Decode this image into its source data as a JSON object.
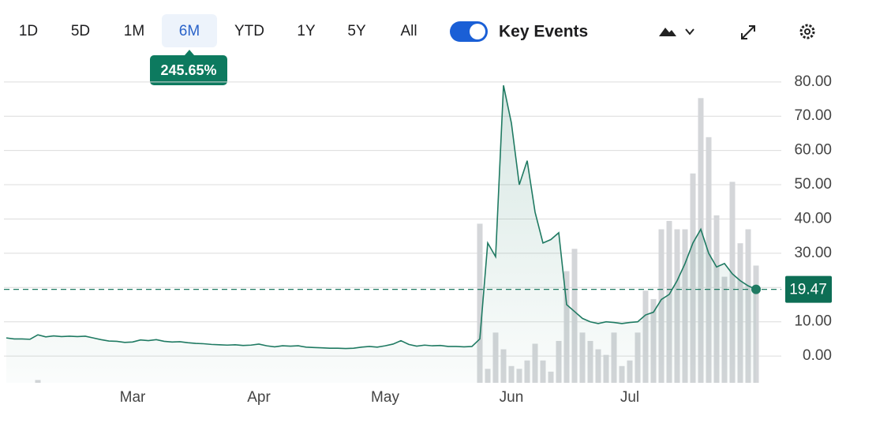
{
  "toolbar": {
    "ranges": [
      "1D",
      "5D",
      "1M",
      "6M",
      "YTD",
      "1Y",
      "5Y",
      "All"
    ],
    "active": "6M",
    "badge": "245.65%",
    "toggle_label": "Key Events",
    "toggle_on": true
  },
  "chart_data": {
    "type": "line",
    "categories": [
      null,
      null,
      null,
      null,
      null,
      null,
      null,
      null,
      null,
      null,
      null,
      null,
      null,
      null,
      null,
      null,
      "Mar",
      null,
      null,
      null,
      null,
      null,
      null,
      null,
      null,
      null,
      null,
      null,
      null,
      null,
      null,
      null,
      "Apr",
      null,
      null,
      null,
      null,
      null,
      null,
      null,
      null,
      null,
      null,
      null,
      null,
      null,
      null,
      null,
      "May",
      null,
      null,
      null,
      null,
      null,
      null,
      null,
      null,
      null,
      null,
      null,
      null,
      null,
      null,
      null,
      "Jun",
      null,
      null,
      null,
      null,
      null,
      null,
      null,
      null,
      null,
      null,
      null,
      null,
      null,
      null,
      "Jul",
      null,
      null,
      null,
      null,
      null,
      null,
      null,
      null,
      null,
      null,
      null,
      null,
      null,
      null,
      null,
      null
    ],
    "series": [
      {
        "color": "#1f7a62",
        "values": [
          5.3,
          5.0,
          5.0,
          4.9,
          6.2,
          5.6,
          5.9,
          5.7,
          5.8,
          5.7,
          5.8,
          5.3,
          4.8,
          4.4,
          4.3,
          4.0,
          4.1,
          4.7,
          4.5,
          4.8,
          4.3,
          4.1,
          4.2,
          3.9,
          3.7,
          3.6,
          3.4,
          3.3,
          3.2,
          3.3,
          3.1,
          3.2,
          3.5,
          3.0,
          2.7,
          3.0,
          2.9,
          3.0,
          2.6,
          2.5,
          2.4,
          2.3,
          2.3,
          2.2,
          2.3,
          2.6,
          2.8,
          2.6,
          3.0,
          3.5,
          4.5,
          3.4,
          2.9,
          3.2,
          3.0,
          3.1,
          2.8,
          2.8,
          2.7,
          2.8,
          5.0,
          33,
          29,
          79,
          68,
          50,
          57,
          42,
          33,
          34,
          36,
          15,
          13,
          11,
          10,
          9.5,
          10,
          9.8,
          9.5,
          9.8,
          10,
          12,
          12.8,
          16.5,
          18,
          22,
          27,
          33,
          37,
          30,
          26,
          27,
          24,
          22,
          20.5,
          19.47
        ]
      }
    ],
    "volume": {
      "color": "#d4d6d9",
      "values": [
        0,
        0,
        0,
        0,
        1,
        0,
        0,
        0,
        0,
        0,
        0,
        0,
        0,
        0,
        0,
        0,
        0,
        0,
        0,
        0,
        0,
        0,
        0,
        0,
        0,
        0,
        0,
        0,
        0,
        0,
        0,
        0,
        0,
        0,
        0,
        0,
        0,
        0,
        0,
        0,
        0,
        0,
        0,
        0,
        0,
        0,
        0,
        0,
        0,
        0,
        0,
        0,
        0,
        0,
        0,
        0,
        0,
        0,
        0,
        0,
        57,
        5,
        18,
        12,
        6,
        5,
        8,
        14,
        8,
        4,
        15,
        40,
        48,
        18,
        15,
        12,
        10,
        18,
        6,
        8,
        18,
        33,
        30,
        55,
        58,
        55,
        55,
        75,
        102,
        88,
        60,
        38,
        72,
        50,
        55,
        42
      ]
    },
    "y2lim": [
      0,
      110
    ],
    "ylim": [
      -7.8,
      81.8
    ],
    "yticks": [
      {
        "value": 0,
        "label": "0.00"
      },
      {
        "value": 10,
        "label": "10.00"
      },
      {
        "value": 20,
        "label": "20.00"
      },
      {
        "value": 30,
        "label": "30.00"
      },
      {
        "value": 40,
        "label": "40.00"
      },
      {
        "value": 50,
        "label": "50.00"
      },
      {
        "value": 60,
        "label": "60.00"
      },
      {
        "value": 70,
        "label": "70.00"
      },
      {
        "value": 80,
        "label": "80.00"
      }
    ],
    "grid": true
  }
}
